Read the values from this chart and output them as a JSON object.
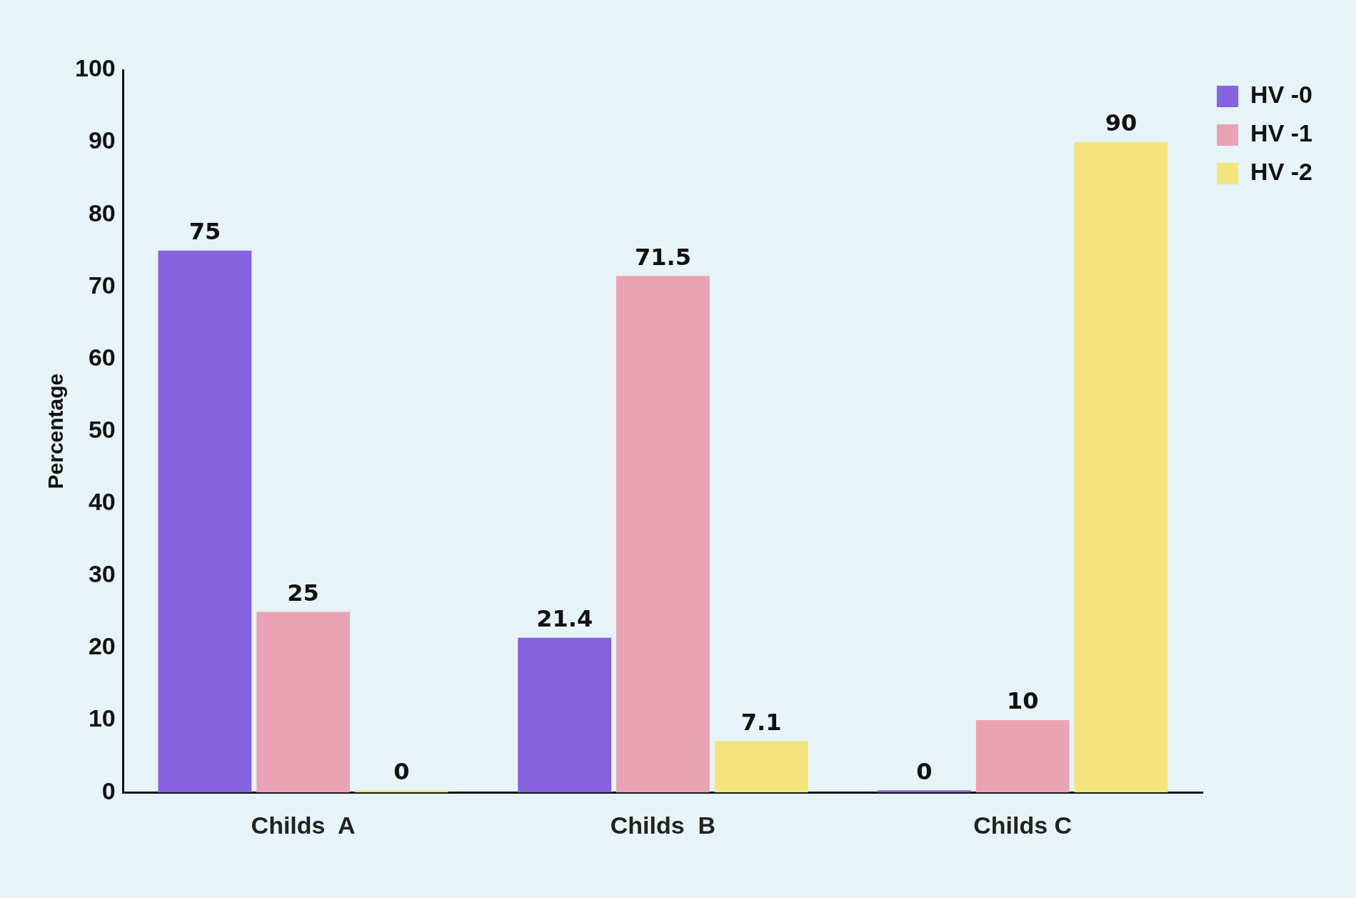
{
  "chart_data": {
    "type": "bar",
    "ylabel": "Percentage",
    "categories": [
      "Childs  A",
      "Childs  B",
      "Childs C"
    ],
    "series": [
      {
        "name": "HV -0",
        "color": "#8462e0",
        "values": [
          75,
          21.4,
          0
        ]
      },
      {
        "name": "HV -1",
        "color": "#e9a3b4",
        "values": [
          25,
          71.5,
          10
        ]
      },
      {
        "name": "HV -2",
        "color": "#f3e47c",
        "values": [
          0,
          7.1,
          90
        ]
      }
    ],
    "ylim": [
      0,
      100
    ],
    "yticks": [
      0,
      10,
      20,
      30,
      40,
      50,
      60,
      70,
      80,
      90,
      100
    ],
    "grid": false,
    "legend": "top right",
    "data_labels": true
  }
}
